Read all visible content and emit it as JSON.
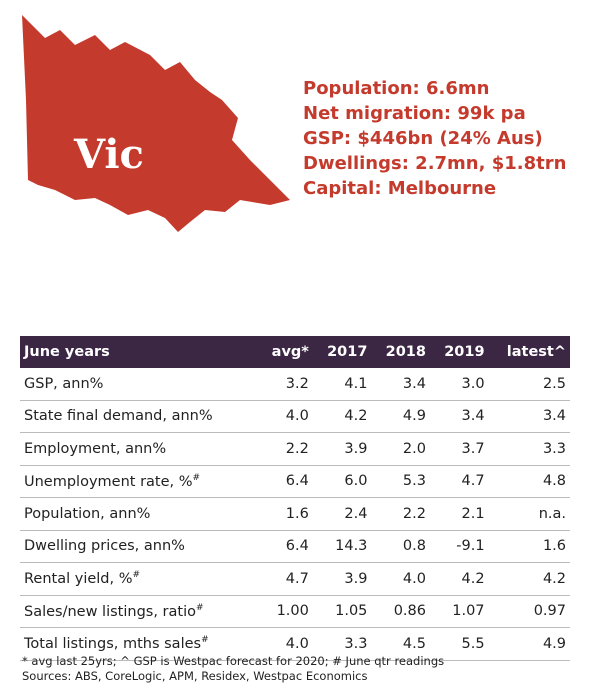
{
  "map": {
    "label": "Vic"
  },
  "facts": [
    "Population: 6.6mn",
    "Net migration: 99k pa",
    "GSP: $446bn (24% Aus)",
    "Dwellings: 2.7mn, $1.8trn",
    "Capital: Melbourne"
  ],
  "table": {
    "header": [
      "June years",
      "avg*",
      "2017",
      "2018",
      "2019",
      "latest^"
    ],
    "rows": [
      {
        "label": "GSP, ann%",
        "values": [
          "3.2",
          "4.1",
          "3.4",
          "3.0",
          "2.5"
        ]
      },
      {
        "label": "State final demand, ann%",
        "values": [
          "4.0",
          "4.2",
          "4.9",
          "3.4",
          "3.4"
        ]
      },
      {
        "label": "Employment, ann%",
        "values": [
          "2.2",
          "3.9",
          "2.0",
          "3.7",
          "3.3"
        ]
      },
      {
        "label": "Unemployment rate, %",
        "sup": "#",
        "values": [
          "6.4",
          "6.0",
          "5.3",
          "4.7",
          "4.8"
        ]
      },
      {
        "label": "Population, ann%",
        "values": [
          "1.6",
          "2.4",
          "2.2",
          "2.1",
          "n.a."
        ]
      },
      {
        "label": "Dwelling prices, ann%",
        "values": [
          "6.4",
          "14.3",
          "0.8",
          "-9.1",
          "1.6"
        ]
      },
      {
        "label": "Rental yield, %",
        "sup": "#",
        "values": [
          "4.7",
          "3.9",
          "4.0",
          "4.2",
          "4.2"
        ]
      },
      {
        "label": "Sales/new listings, ratio",
        "sup": "#",
        "values": [
          "1.00",
          "1.05",
          "0.86",
          "1.07",
          "0.97"
        ]
      },
      {
        "label": "Total listings, mths sales",
        "sup": "#",
        "values": [
          "4.0",
          "3.3",
          "4.5",
          "5.5",
          "4.9"
        ]
      }
    ]
  },
  "footnotes": [
    "* avg last 25yrs; ^ GSP is Westpac forecast for 2020; # June qtr readings",
    "Sources: ABS, CoreLogic, APM, Residex, Westpac Economics"
  ]
}
